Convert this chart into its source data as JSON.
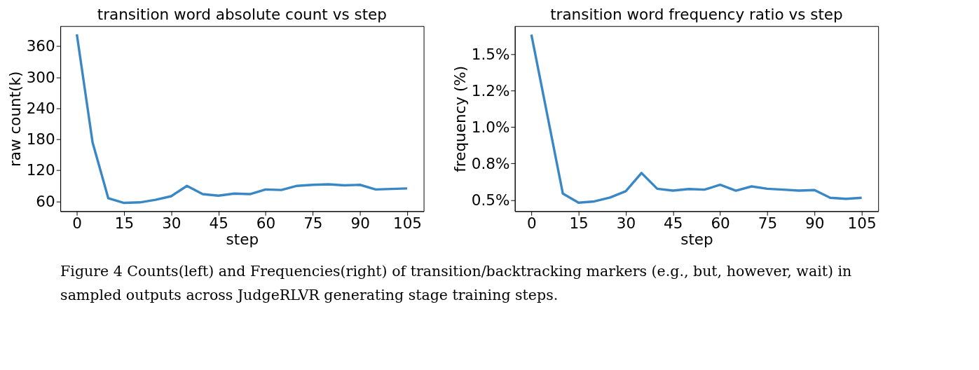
{
  "chart_data": [
    {
      "type": "line",
      "title": "transition word absolute count vs step",
      "xlabel": "step",
      "ylabel": "raw count(k)",
      "x": [
        0,
        5,
        10,
        15,
        20,
        25,
        30,
        35,
        40,
        45,
        50,
        55,
        60,
        65,
        70,
        75,
        80,
        85,
        90,
        95,
        100,
        105
      ],
      "series": [
        {
          "color": "#3a87c5",
          "values": [
            383,
            174,
            66,
            57,
            58,
            63,
            70,
            90,
            74,
            71,
            75,
            74,
            83,
            82,
            90,
            92,
            93,
            91,
            92,
            83,
            84,
            85
          ]
        }
      ],
      "xlim": [
        -5.25,
        110.25
      ],
      "xticks": [
        0,
        15,
        30,
        45,
        60,
        75,
        90,
        105
      ],
      "ylim": [
        41,
        399
      ],
      "yticks": [
        60,
        120,
        180,
        240,
        300,
        360
      ],
      "grid": false,
      "marker": "none",
      "line_style": "solid"
    },
    {
      "type": "line",
      "title": "transition word frequency ratio vs step",
      "xlabel": "step",
      "ylabel": "frequency (%)",
      "x": [
        0,
        5,
        10,
        15,
        20,
        25,
        30,
        35,
        40,
        45,
        50,
        55,
        60,
        65,
        70,
        75,
        80,
        85,
        90,
        95,
        100,
        105
      ],
      "series": [
        {
          "color": "#3a87c5",
          "values": [
            1.635,
            1.09,
            0.544,
            0.481,
            0.49,
            0.517,
            0.56,
            0.685,
            0.577,
            0.564,
            0.575,
            0.571,
            0.604,
            0.564,
            0.593,
            0.577,
            0.571,
            0.564,
            0.568,
            0.515,
            0.508,
            0.515
          ]
        }
      ],
      "xlim": [
        -5.25,
        110.25
      ],
      "xticks": [
        0,
        15,
        30,
        45,
        60,
        75,
        90,
        105
      ],
      "ylim": [
        0.423,
        1.693
      ],
      "yticks": [
        {
          "value": 0.5,
          "label": "0.5%"
        },
        {
          "value": 0.75,
          "label": "0.8%"
        },
        {
          "value": 1.0,
          "label": "1.0%"
        },
        {
          "value": 1.25,
          "label": "1.2%"
        },
        {
          "value": 1.5,
          "label": "1.5%"
        }
      ],
      "grid": false,
      "marker": "none",
      "line_style": "solid",
      "annotations": [
        "Figure 4  Counts(left) and Frequencies(right) of transition/backtracking markers (e.g., but, however, wait) in sampled outputs across JudgeRLVR generating stage training steps."
      ]
    }
  ]
}
